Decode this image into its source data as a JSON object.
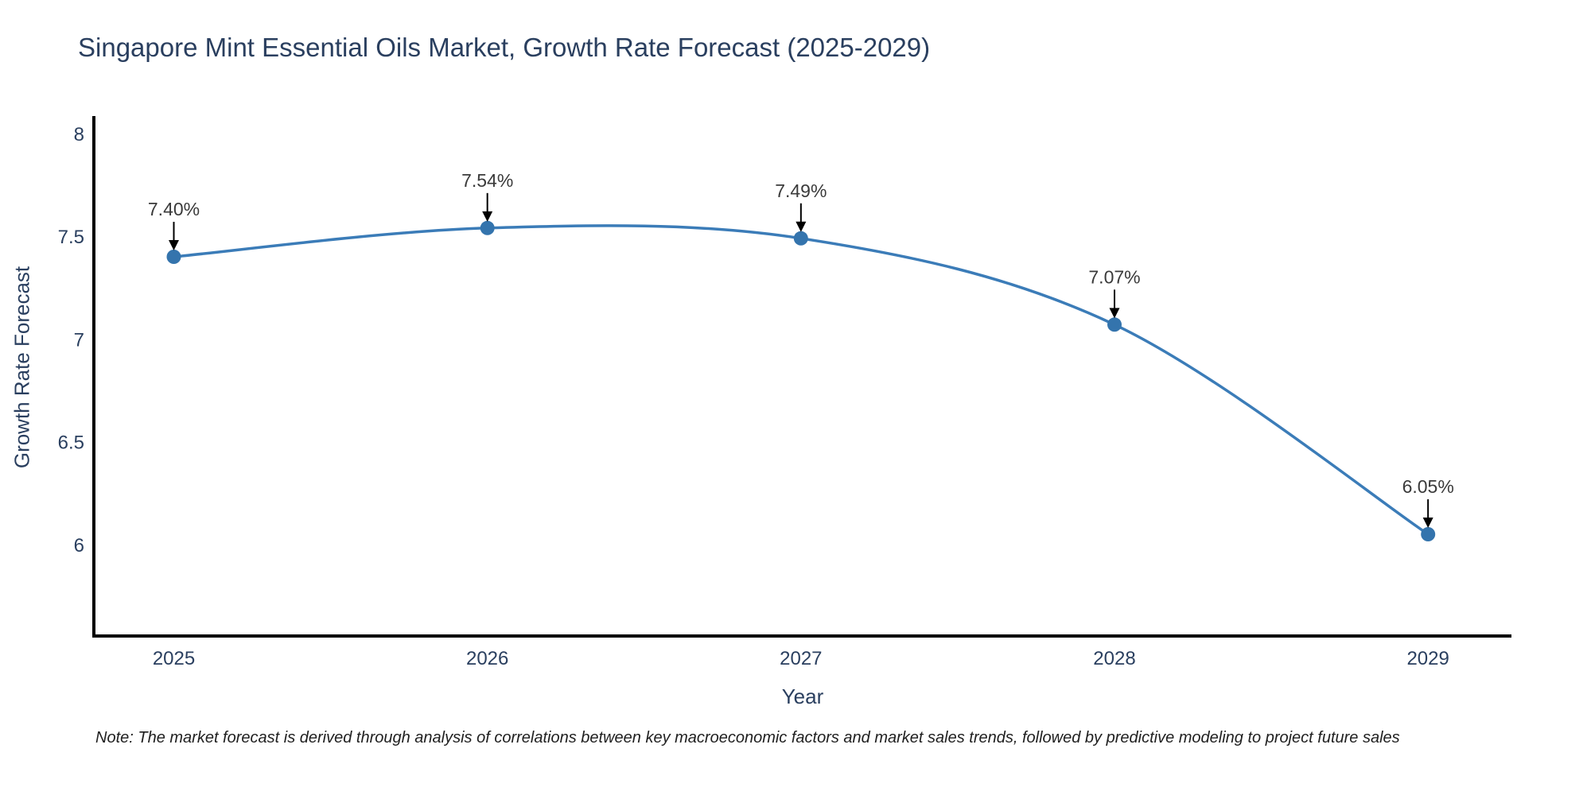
{
  "page": {
    "background": "#ffffff"
  },
  "chart_data": {
    "type": "line",
    "curve": "spline",
    "title": "Singapore Mint Essential Oils Market, Growth Rate Forecast (2025-2029)",
    "xlabel": "Year",
    "ylabel": "Growth Rate Forecast",
    "x": [
      2025,
      2026,
      2027,
      2028,
      2029
    ],
    "y": [
      7.4,
      7.54,
      7.49,
      7.07,
      6.05
    ],
    "point_labels": [
      "7.40%",
      "7.54%",
      "7.49%",
      "7.07%",
      "6.05%"
    ],
    "xtick_labels": [
      "2025",
      "2026",
      "2027",
      "2028",
      "2029"
    ],
    "ytick_values": [
      8,
      7.5,
      7,
      6.5,
      6
    ],
    "ytick_labels": [
      "8",
      "7.5",
      "7",
      "6.5",
      "6"
    ],
    "xlim": [
      2024.745,
      2029.266
    ],
    "ylim": [
      5.555,
      8.077
    ],
    "grid": false,
    "legend": false,
    "line_color": "#3b7cb8",
    "marker_color": "#3474ad",
    "axis_color": "#000000",
    "arrow_color": "#000000",
    "text_color": "#2a3f5f",
    "annotation_color": "#3a3a3a"
  },
  "footnote": {
    "text": "Note: The market forecast is derived through analysis of correlations between key macroeconomic factors and market sales trends, followed by predictive modeling to project future sales"
  }
}
